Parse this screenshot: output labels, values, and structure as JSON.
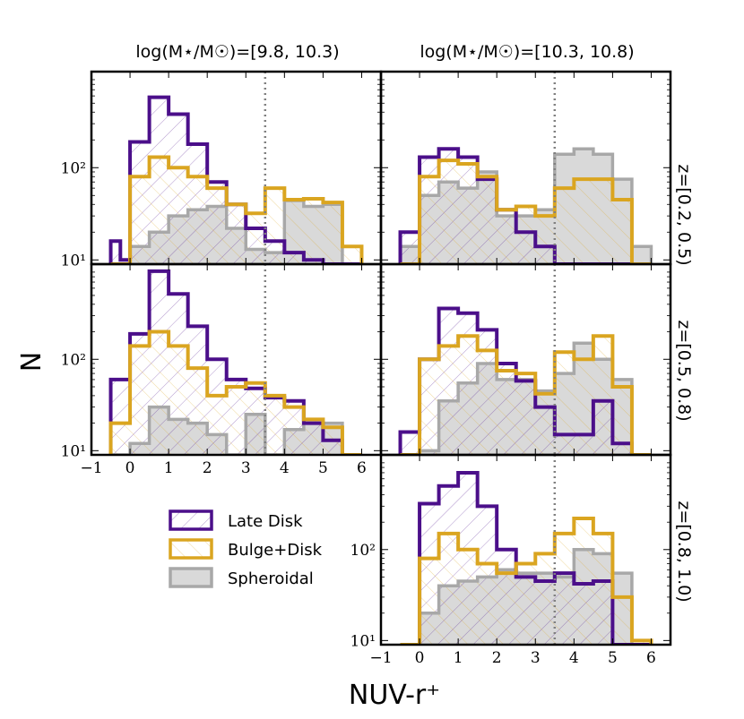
{
  "chart_data": {
    "type": "histogram-grid",
    "xlabel": "NUV-r⁺",
    "ylabel": "N",
    "yscale": "log",
    "xlim": [
      -1,
      6.5
    ],
    "ylim": [
      9,
      1100
    ],
    "xticks": [
      -1,
      0,
      1,
      2,
      3,
      4,
      5,
      6
    ],
    "yticks": [
      10,
      100
    ],
    "ytick_labels": [
      "10¹",
      "10²"
    ],
    "vline_x": 3.5,
    "bin_edges": [
      -0.5,
      -0.25,
      0.0,
      0.25,
      0.5,
      0.75,
      1.0,
      1.25,
      1.5,
      1.75,
      2.0,
      2.25,
      2.5,
      2.75,
      3.0,
      3.25,
      3.5,
      3.75,
      4.0,
      4.25,
      4.5,
      4.75,
      5.0,
      5.25,
      5.5,
      5.75,
      6.0
    ],
    "col_titles": [
      "log(M⋆/M☉)=[9.8, 10.3)",
      "log(M⋆/M☉)=[10.3, 10.8)"
    ],
    "row_labels": [
      "z=[0.2, 0.5)",
      "z=[0.5, 0.8)",
      "z=[0.8, 1.0)"
    ],
    "legend": [
      {
        "key": "late",
        "label": "Late Disk"
      },
      {
        "key": "bulge",
        "label": "Bulge+Disk"
      },
      {
        "key": "sph",
        "label": "Spheroidal"
      }
    ],
    "colors": {
      "late": "#4b0f8a",
      "bulge": "#daa520",
      "sph": "#a8a8a8",
      "sph_fill": "#d9d9d9",
      "vline": "#808080"
    },
    "panels": [
      {
        "row": 0,
        "col": 0,
        "show_xticks": false,
        "show_yticks": true,
        "late": [
          16,
          10,
          190,
          190,
          580,
          580,
          380,
          380,
          180,
          180,
          70,
          70,
          40,
          40,
          22,
          22,
          16,
          16,
          12,
          12,
          10,
          10,
          9,
          9,
          9,
          9
        ],
        "bulge": [
          9,
          9,
          80,
          80,
          130,
          130,
          100,
          100,
          80,
          80,
          60,
          60,
          40,
          40,
          32,
          32,
          60,
          60,
          45,
          45,
          46,
          46,
          42,
          42,
          14,
          14
        ],
        "sph": [
          9,
          9,
          14,
          14,
          20,
          20,
          30,
          30,
          35,
          35,
          38,
          38,
          22,
          22,
          13,
          13,
          12,
          12,
          44,
          44,
          38,
          38,
          40,
          40,
          9,
          9
        ]
      },
      {
        "row": 0,
        "col": 1,
        "show_xticks": false,
        "show_yticks": false,
        "late": [
          20,
          20,
          130,
          130,
          160,
          160,
          130,
          130,
          75,
          75,
          35,
          35,
          20,
          20,
          14,
          14,
          9,
          9,
          9,
          9,
          9,
          9,
          9,
          9,
          9,
          9
        ],
        "bulge": [
          9,
          9,
          80,
          80,
          120,
          120,
          110,
          110,
          80,
          80,
          35,
          35,
          38,
          38,
          30,
          30,
          60,
          60,
          75,
          75,
          75,
          75,
          45,
          45,
          9,
          9
        ],
        "sph": [
          14,
          14,
          50,
          50,
          70,
          70,
          60,
          60,
          90,
          90,
          30,
          30,
          30,
          30,
          35,
          35,
          140,
          140,
          160,
          160,
          140,
          140,
          75,
          75,
          14,
          14
        ]
      },
      {
        "row": 1,
        "col": 0,
        "show_xticks": true,
        "show_yticks": true,
        "late": [
          60,
          60,
          190,
          190,
          920,
          920,
          520,
          520,
          230,
          230,
          100,
          100,
          60,
          60,
          48,
          48,
          38,
          38,
          35,
          35,
          20,
          20,
          13,
          13,
          9,
          9
        ],
        "bulge": [
          20,
          20,
          140,
          140,
          200,
          200,
          140,
          140,
          80,
          80,
          40,
          40,
          50,
          50,
          55,
          55,
          40,
          40,
          30,
          30,
          22,
          22,
          18,
          18,
          9,
          9
        ],
        "sph": [
          9,
          9,
          12,
          12,
          30,
          30,
          22,
          22,
          20,
          20,
          15,
          15,
          9,
          9,
          25,
          25,
          9,
          9,
          17,
          17,
          20,
          20,
          20,
          20,
          9,
          9
        ]
      },
      {
        "row": 1,
        "col": 1,
        "show_xticks": false,
        "show_yticks": false,
        "late": [
          16,
          16,
          100,
          100,
          360,
          360,
          320,
          320,
          210,
          210,
          90,
          90,
          58,
          58,
          30,
          30,
          15,
          15,
          15,
          15,
          35,
          35,
          12,
          12,
          9,
          9
        ],
        "bulge": [
          9,
          9,
          100,
          100,
          140,
          140,
          180,
          180,
          125,
          125,
          75,
          75,
          70,
          70,
          42,
          42,
          120,
          120,
          100,
          100,
          180,
          180,
          50,
          50,
          9,
          9
        ],
        "sph": [
          9,
          9,
          10,
          10,
          35,
          35,
          55,
          55,
          90,
          90,
          60,
          60,
          60,
          60,
          45,
          45,
          70,
          70,
          150,
          150,
          100,
          100,
          60,
          60,
          9,
          9
        ]
      },
      {
        "row": 2,
        "col": 1,
        "show_xticks": true,
        "show_yticks": true,
        "late": [
          9,
          9,
          320,
          320,
          500,
          500,
          700,
          700,
          300,
          300,
          100,
          100,
          50,
          50,
          45,
          45,
          55,
          55,
          42,
          42,
          45,
          45,
          9,
          9,
          9,
          9
        ],
        "bulge": [
          9,
          9,
          80,
          80,
          150,
          150,
          100,
          100,
          70,
          70,
          55,
          55,
          70,
          70,
          90,
          90,
          150,
          150,
          220,
          220,
          150,
          150,
          30,
          30,
          10,
          10
        ],
        "sph": [
          9,
          9,
          20,
          20,
          40,
          40,
          45,
          45,
          50,
          50,
          60,
          60,
          55,
          55,
          55,
          55,
          50,
          50,
          100,
          100,
          90,
          90,
          55,
          55,
          9,
          9
        ]
      }
    ]
  }
}
